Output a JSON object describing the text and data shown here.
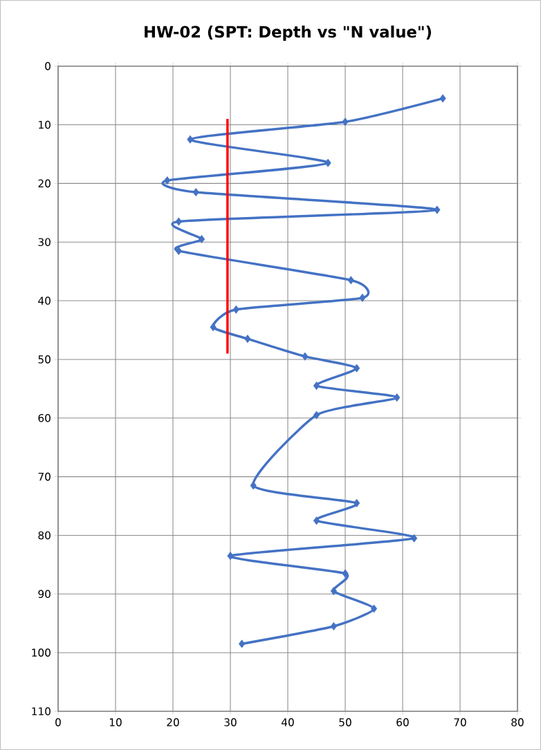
{
  "chart_data": {
    "type": "line",
    "title": "HW-02 (SPT: Depth vs \"N value\")",
    "xlim": [
      0,
      80
    ],
    "xticks": [
      0,
      10,
      20,
      30,
      40,
      50,
      60,
      70,
      80
    ],
    "ylim": [
      110,
      0
    ],
    "yticks": [
      0,
      10,
      20,
      30,
      40,
      50,
      60,
      70,
      80,
      90,
      100,
      110
    ],
    "grid": true,
    "marker": "diamond",
    "line_style": "solid",
    "series": [
      {
        "color": "#4472c4",
        "x": [
          67,
          50,
          23,
          47,
          19,
          24,
          66,
          21,
          25,
          21,
          51,
          53,
          31,
          27,
          33,
          43,
          52,
          45,
          59,
          45,
          34,
          52,
          45,
          62,
          30,
          50,
          48,
          55,
          48,
          32
        ],
        "values": [
          5.5,
          9.5,
          12.5,
          16.5,
          19.5,
          21.5,
          24.5,
          26.5,
          29.5,
          31.5,
          36.5,
          39.5,
          41.5,
          44.5,
          46.5,
          49.5,
          51.5,
          54.5,
          56.5,
          59.5,
          71.5,
          74.5,
          77.5,
          80.5,
          83.5,
          86.5,
          89.5,
          92.5,
          95.5,
          98.5
        ]
      },
      {
        "color": "#ff0000",
        "marker": "none",
        "x": [
          29.5,
          29.5
        ],
        "values": [
          9,
          49
        ]
      }
    ]
  }
}
